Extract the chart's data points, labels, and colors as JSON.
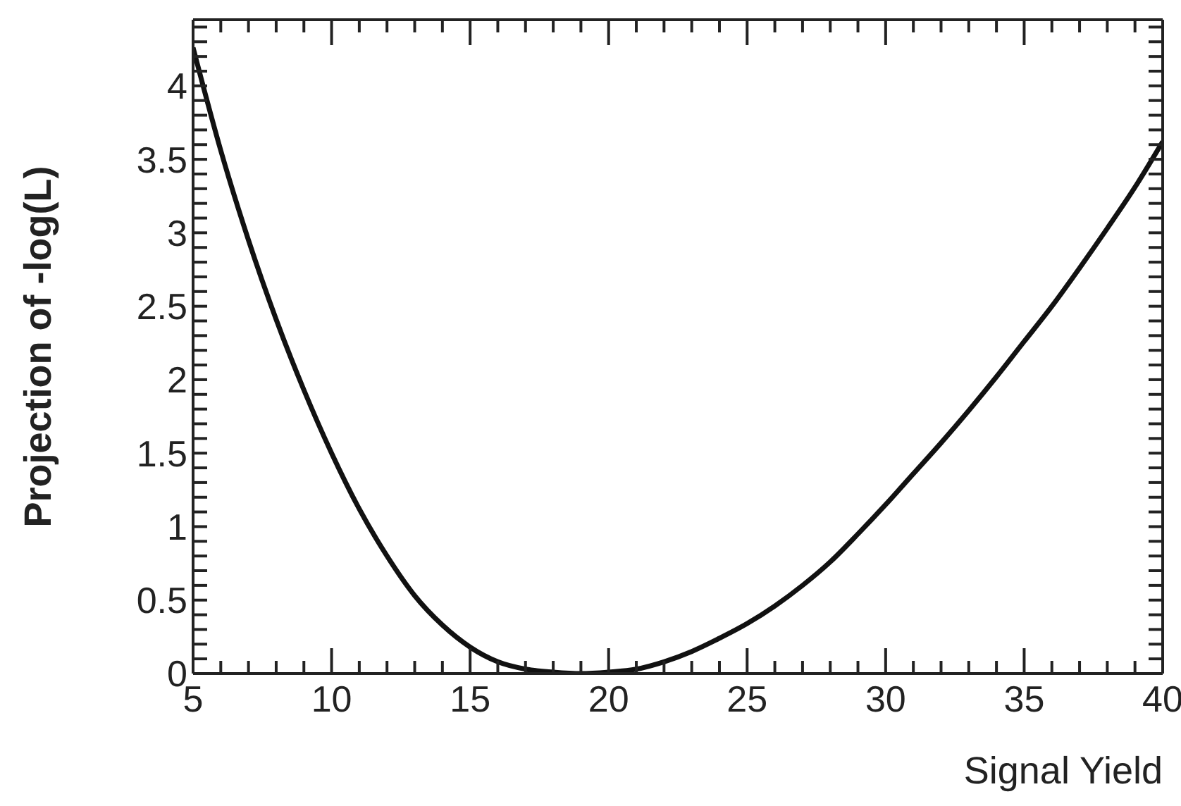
{
  "chart_data": {
    "type": "line",
    "xlabel": "Signal Yield",
    "ylabel": "Projection of -log(L)",
    "x": [
      5,
      6,
      7,
      8,
      9,
      10,
      11,
      12,
      13,
      14,
      15,
      16,
      17,
      18,
      19,
      20,
      21,
      22,
      23,
      24,
      25,
      26,
      27,
      28,
      29,
      30,
      31,
      32,
      33,
      34,
      35,
      36,
      37,
      38,
      39,
      40
    ],
    "series": [
      {
        "color": "#111111",
        "values": [
          4.26,
          3.56,
          2.95,
          2.41,
          1.93,
          1.5,
          1.12,
          0.8,
          0.53,
          0.33,
          0.18,
          0.08,
          0.03,
          0.01,
          0,
          0.01,
          0.03,
          0.08,
          0.15,
          0.24,
          0.34,
          0.46,
          0.6,
          0.76,
          0.95,
          1.15,
          1.36,
          1.57,
          1.79,
          2.02,
          2.26,
          2.5,
          2.76,
          3.03,
          3.31,
          3.62
        ]
      }
    ],
    "line_style": "solid",
    "xlim": [
      5,
      40
    ],
    "ylim": [
      0,
      4.45
    ],
    "xticks": [
      5,
      {
        "value": 6,
        "label": null
      },
      {
        "value": 7,
        "label": null
      },
      {
        "value": 8,
        "label": null
      },
      {
        "value": 9,
        "label": null
      },
      10,
      {
        "value": 11,
        "label": null
      },
      {
        "value": 12,
        "label": null
      },
      {
        "value": 13,
        "label": null
      },
      {
        "value": 14,
        "label": null
      },
      15,
      {
        "value": 16,
        "label": null
      },
      {
        "value": 17,
        "label": null
      },
      {
        "value": 18,
        "label": null
      },
      {
        "value": 19,
        "label": null
      },
      20,
      {
        "value": 21,
        "label": null
      },
      {
        "value": 22,
        "label": null
      },
      {
        "value": 23,
        "label": null
      },
      {
        "value": 24,
        "label": null
      },
      25,
      {
        "value": 26,
        "label": null
      },
      {
        "value": 27,
        "label": null
      },
      {
        "value": 28,
        "label": null
      },
      {
        "value": 29,
        "label": null
      },
      30,
      {
        "value": 31,
        "label": null
      },
      {
        "value": 32,
        "label": null
      },
      {
        "value": 33,
        "label": null
      },
      {
        "value": 34,
        "label": null
      },
      35,
      {
        "value": 36,
        "label": null
      },
      {
        "value": 37,
        "label": null
      },
      {
        "value": 38,
        "label": null
      },
      {
        "value": 39,
        "label": null
      },
      40
    ],
    "yticks": [
      0,
      {
        "value": 0.1,
        "label": null
      },
      {
        "value": 0.2,
        "label": null
      },
      {
        "value": 0.3,
        "label": null
      },
      {
        "value": 0.4,
        "label": null
      },
      0.5,
      {
        "value": 0.6,
        "label": null
      },
      {
        "value": 0.7,
        "label": null
      },
      {
        "value": 0.8,
        "label": null
      },
      {
        "value": 0.9,
        "label": null
      },
      1,
      {
        "value": 1.1,
        "label": null
      },
      {
        "value": 1.2,
        "label": null
      },
      {
        "value": 1.3,
        "label": null
      },
      {
        "value": 1.4,
        "label": null
      },
      1.5,
      {
        "value": 1.6,
        "label": null
      },
      {
        "value": 1.7,
        "label": null
      },
      {
        "value": 1.8,
        "label": null
      },
      {
        "value": 1.9,
        "label": null
      },
      2,
      {
        "value": 2.1,
        "label": null
      },
      {
        "value": 2.2,
        "label": null
      },
      {
        "value": 2.3,
        "label": null
      },
      {
        "value": 2.4,
        "label": null
      },
      2.5,
      {
        "value": 2.6,
        "label": null
      },
      {
        "value": 2.7,
        "label": null
      },
      {
        "value": 2.8,
        "label": null
      },
      {
        "value": 2.9,
        "label": null
      },
      3,
      {
        "value": 3.1,
        "label": null
      },
      {
        "value": 3.2,
        "label": null
      },
      {
        "value": 3.3,
        "label": null
      },
      {
        "value": 3.4,
        "label": null
      },
      3.5,
      {
        "value": 3.6,
        "label": null
      },
      {
        "value": 3.7,
        "label": null
      },
      {
        "value": 3.8,
        "label": null
      },
      {
        "value": 3.9,
        "label": null
      },
      4,
      {
        "value": 4.1,
        "label": null
      },
      {
        "value": 4.2,
        "label": null
      },
      {
        "value": 4.3,
        "label": null
      },
      {
        "value": 4.4,
        "label": null
      }
    ]
  }
}
